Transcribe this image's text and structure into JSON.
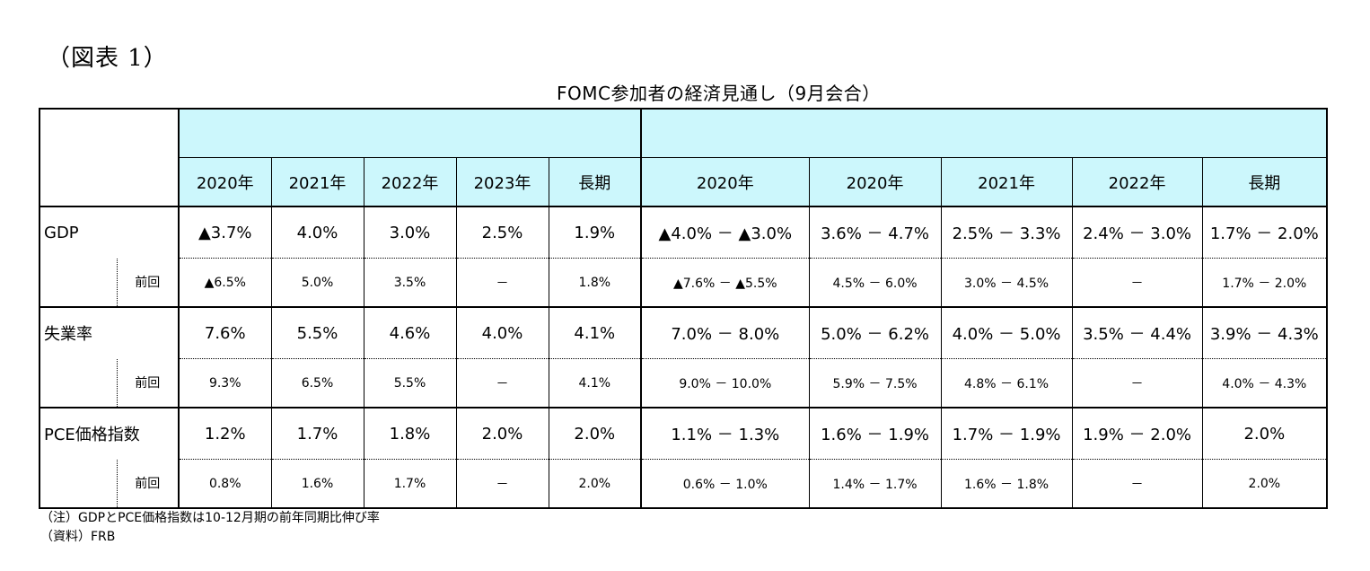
{
  "figure_label": "（図表 1）",
  "title": "FOMC参加者の経済見通し（9月会合）",
  "group_headers": [
    "",
    ""
  ],
  "columns": [
    "2020年",
    "2021年",
    "2022年",
    "2023年",
    "長期",
    "2020年",
    "2020年",
    "2021年",
    "2022年",
    "長期"
  ],
  "rows": [
    {
      "label": "GDP",
      "values": [
        "▲3.7%",
        "4.0%",
        "3.0%",
        "2.5%",
        "1.9%",
        "▲4.0% － ▲3.0%",
        "3.6% － 4.7%",
        "2.5% － 3.3%",
        "2.4% － 3.0%",
        "1.7% － 2.0%"
      ],
      "prev_label": "前回",
      "prev_values": [
        "▲6.5%",
        "5.0%",
        "3.5%",
        "－",
        "1.8%",
        "▲7.6% － ▲5.5%",
        "4.5% － 6.0%",
        "3.0% － 4.5%",
        "－",
        "1.7% － 2.0%"
      ]
    },
    {
      "label": "失業率",
      "values": [
        "7.6%",
        "5.5%",
        "4.6%",
        "4.0%",
        "4.1%",
        "7.0% － 8.0%",
        "5.0% － 6.2%",
        "4.0% － 5.0%",
        "3.5% － 4.4%",
        "3.9% － 4.3%"
      ],
      "prev_label": "前回",
      "prev_values": [
        "9.3%",
        "6.5%",
        "5.5%",
        "－",
        "4.1%",
        "9.0% － 10.0%",
        "5.9% － 7.5%",
        "4.8% － 6.1%",
        "－",
        "4.0% － 4.3%"
      ]
    },
    {
      "label": "PCE価格指数",
      "values": [
        "1.2%",
        "1.7%",
        "1.8%",
        "2.0%",
        "2.0%",
        "1.1% － 1.3%",
        "1.6% － 1.9%",
        "1.7% － 1.9%",
        "1.9% － 2.0%",
        "2.0%"
      ],
      "prev_label": "前回",
      "prev_values": [
        "0.8%",
        "1.6%",
        "1.7%",
        "－",
        "2.0%",
        "0.6% － 1.0%",
        "1.4% － 1.7%",
        "1.6% － 1.8%",
        "－",
        "2.0%"
      ]
    }
  ],
  "note": "（注）GDPとPCE価格指数は10-12月期の前年同期比伸び率",
  "source": "（資料）FRB",
  "colors": {
    "header_bg": "#ccf7fc"
  }
}
